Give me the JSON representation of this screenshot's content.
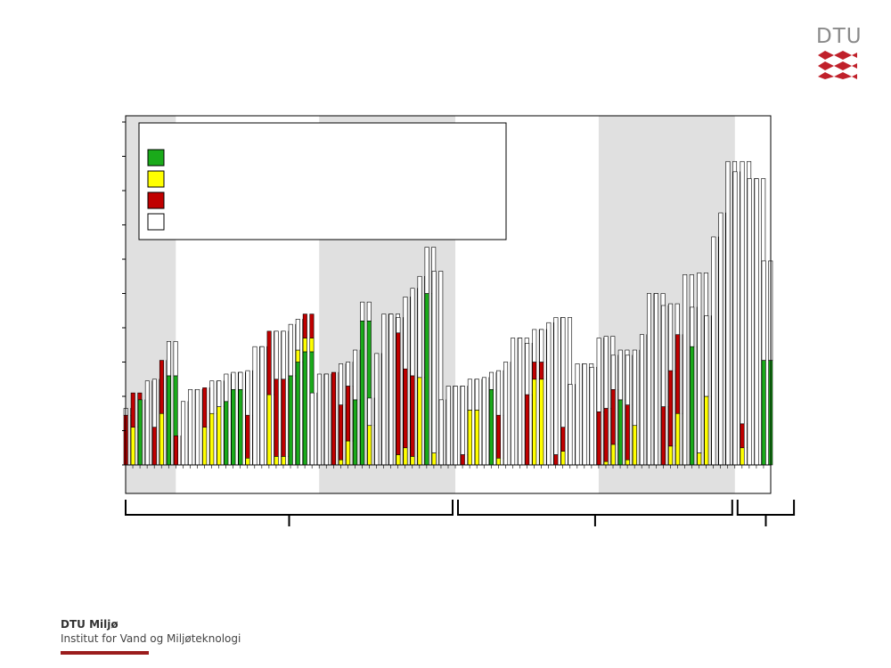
{
  "branding": {
    "logo_text": "DTU",
    "logo_color": "#8a8a8a",
    "logo_mark_color": "#c0202a",
    "org_name": "DTU Miljø",
    "institute": "Institut for Vand og Miljøteknologi",
    "footer_bar_color": "#9b1c1c"
  },
  "chart_data": {
    "type": "bar",
    "stacked": true,
    "title": "",
    "xlabel": "",
    "ylabel": "",
    "ylim": [
      0,
      10
    ],
    "grid": false,
    "legend_placement": "top-left",
    "legend": [
      {
        "color": "#1aaa1a",
        "label": ""
      },
      {
        "color": "#ffff00",
        "label": ""
      },
      {
        "color": "#c00000",
        "label": ""
      },
      {
        "color": "#ffffff",
        "label": ""
      }
    ],
    "series": [
      {
        "color": "#1aaa1a"
      },
      {
        "color": "#ffff00"
      },
      {
        "color": "#c00000"
      },
      {
        "color": "#ffffff"
      }
    ],
    "shaded_bands": [
      [
        0,
        7
      ],
      [
        27,
        46
      ],
      [
        66,
        85
      ]
    ],
    "group_brackets": [
      [
        0,
        46
      ],
      [
        46,
        85
      ],
      [
        85,
        93
      ]
    ],
    "bars": [
      [
        0,
        0,
        1.45,
        0.2
      ],
      [
        0,
        1.1,
        1.0,
        0
      ],
      [
        1.9,
        0,
        0,
        0
      ],
      [
        0,
        0,
        0,
        2.45
      ],
      [
        0,
        0,
        1.1,
        1.4
      ],
      [
        0,
        1.5,
        1.55,
        0
      ],
      [
        2.6,
        0,
        0,
        1.0
      ],
      [
        0,
        0,
        0.85,
        0
      ],
      [
        0,
        0,
        0,
        1.85
      ],
      [
        0,
        0,
        0,
        2.2
      ],
      [
        0,
        0,
        0,
        2.2
      ],
      [
        0,
        1.1,
        1.15,
        0
      ],
      [
        0,
        1.5,
        0,
        0.95
      ],
      [
        0,
        1.7,
        0,
        0.75
      ],
      [
        1.85,
        0,
        0,
        0.8
      ],
      [
        2.2,
        0,
        0,
        0.5
      ],
      [
        2.2,
        0,
        0,
        0.5
      ],
      [
        0,
        0.2,
        1.25,
        1.3
      ],
      [
        0,
        0,
        0,
        3.45
      ],
      [
        0,
        0,
        0,
        3.45
      ],
      [
        0,
        2.05,
        1.85,
        0
      ],
      [
        0,
        0.25,
        2.25,
        1.4
      ],
      [
        0,
        0.25,
        2.25,
        1.4
      ],
      [
        2.6,
        0,
        0,
        1.5
      ],
      [
        3.0,
        0.35,
        0,
        0.9
      ],
      [
        3.3,
        0.4,
        0.7,
        0
      ],
      [
        0,
        0,
        0,
        2.1
      ],
      [
        0,
        0,
        0,
        2.65
      ],
      [
        0,
        0,
        0,
        2.65
      ],
      [
        0,
        0,
        2.7,
        0
      ],
      [
        0,
        0.15,
        1.6,
        1.2
      ],
      [
        0,
        0.7,
        1.6,
        0.7
      ],
      [
        1.9,
        0,
        0,
        1.45
      ],
      [
        4.2,
        0,
        0,
        0.55
      ],
      [
        0,
        1.15,
        0,
        0.8
      ],
      [
        0,
        0,
        0,
        3.25
      ],
      [
        0,
        0,
        0,
        4.4
      ],
      [
        0,
        0,
        0,
        4.4
      ],
      [
        0,
        0.3,
        3.55,
        0.45
      ],
      [
        0,
        0.5,
        2.3,
        2.1
      ],
      [
        0,
        0.25,
        2.35,
        2.55
      ],
      [
        0,
        2.55,
        0,
        2.95
      ],
      [
        5.0,
        0,
        0,
        1.35
      ],
      [
        0,
        0.35,
        0,
        5.3
      ],
      [
        0,
        0,
        0,
        1.9
      ],
      [
        0,
        0,
        0,
        2.3
      ],
      [
        0,
        0,
        0,
        2.3
      ],
      [
        0,
        0,
        0.3,
        2.0
      ],
      [
        0,
        1.6,
        0,
        0.9
      ],
      [
        0,
        1.6,
        0,
        0.9
      ],
      [
        0,
        0,
        0,
        2.55
      ],
      [
        2.2,
        0,
        0,
        0.5
      ],
      [
        0,
        0.2,
        1.25,
        1.3
      ],
      [
        0,
        0,
        0,
        3.0
      ],
      [
        0,
        0,
        0,
        3.7
      ],
      [
        0,
        0,
        0,
        3.7
      ],
      [
        0,
        0,
        2.05,
        1.5
      ],
      [
        0,
        2.5,
        0.5,
        0.95
      ],
      [
        0,
        2.5,
        0.5,
        0.95
      ],
      [
        0,
        0,
        0,
        4.15
      ],
      [
        0,
        0,
        0.3,
        4.0
      ],
      [
        0,
        0.4,
        0.7,
        3.2
      ],
      [
        0,
        0,
        0,
        2.35
      ],
      [
        0,
        0,
        0,
        2.95
      ],
      [
        0,
        0,
        0,
        2.95
      ],
      [
        0,
        0,
        0,
        2.85
      ],
      [
        0,
        0,
        1.55,
        2.15
      ],
      [
        0,
        0.1,
        1.55,
        2.1
      ],
      [
        0,
        0.6,
        1.6,
        1.0
      ],
      [
        1.9,
        0,
        0,
        1.45
      ],
      [
        0,
        0.15,
        1.6,
        1.45
      ],
      [
        0,
        1.15,
        0,
        2.2
      ],
      [
        0,
        0,
        0,
        3.8
      ],
      [
        0,
        0,
        0,
        5.0
      ],
      [
        0,
        0,
        0,
        5.0
      ],
      [
        0,
        0,
        1.7,
        2.95
      ],
      [
        0,
        0.55,
        2.2,
        1.95
      ],
      [
        0,
        1.5,
        2.3,
        0
      ],
      [
        0,
        0,
        0,
        5.55
      ],
      [
        3.45,
        0,
        0,
        1.15
      ],
      [
        0,
        0.35,
        0,
        5.25
      ],
      [
        0,
        2.0,
        0,
        2.35
      ],
      [
        0,
        0,
        0,
        6.65
      ],
      [
        0,
        0,
        0,
        7.35
      ],
      [
        0,
        0,
        0,
        8.85
      ],
      [
        0,
        0,
        0,
        8.55
      ],
      [
        0,
        0.5,
        0.7,
        7.65
      ],
      [
        0,
        0,
        0,
        8.35
      ],
      [
        0,
        0,
        0,
        8.35
      ],
      [
        3.05,
        0,
        0,
        2.9
      ]
    ]
  }
}
